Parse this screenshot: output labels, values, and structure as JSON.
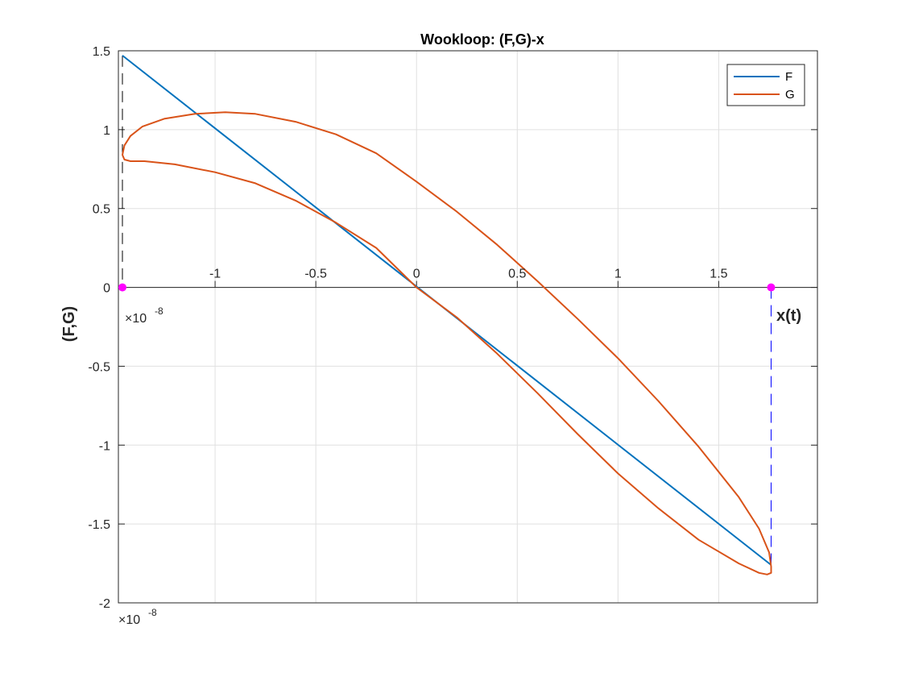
{
  "chart_data": {
    "type": "line",
    "title": "Wookloop: (F,G)-x",
    "xlabel": "x(t)",
    "ylabel": "(F,G)",
    "x_exponent_base": "×10",
    "x_exponent_power": "-8",
    "x_exponent_base_2": "×10",
    "x_exponent_power_2": "-8",
    "xlim": [
      -1.48,
      1.99
    ],
    "ylim": [
      -2,
      1.5
    ],
    "x_ticks": [
      -1,
      -0.5,
      0,
      0.5,
      1,
      1.5
    ],
    "x_tick_labels": [
      "-1",
      "-0.5",
      "0",
      "0.5",
      "1",
      "1.5"
    ],
    "y_ticks": [
      -2,
      -1.5,
      -1,
      -0.5,
      0,
      0.5,
      1,
      1.5
    ],
    "y_tick_labels": [
      "-2",
      "-1.5",
      "-1",
      "-0.5",
      "0",
      "0.5",
      "1",
      "1.5"
    ],
    "grid": true,
    "legend_placement": "top-right",
    "series": [
      {
        "name": "F",
        "color": "#0072BD",
        "x": [
          -1.46,
          1.76
        ],
        "y": [
          1.47,
          -1.76
        ]
      },
      {
        "name": "G",
        "color": "#D95319",
        "x": [
          -1.46,
          -1.45,
          -1.42,
          -1.36,
          -1.25,
          -1.1,
          -0.95,
          -0.8,
          -0.6,
          -0.4,
          -0.2,
          0.0,
          0.2,
          0.4,
          0.6,
          0.8,
          1.0,
          1.2,
          1.4,
          1.6,
          1.7,
          1.75,
          1.76,
          1.76,
          1.74,
          1.7,
          1.6,
          1.4,
          1.2,
          1.0,
          0.8,
          0.6,
          0.4,
          0.2,
          0.0,
          -0.2,
          -0.4,
          -0.6,
          -0.8,
          -1.0,
          -1.2,
          -1.35,
          -1.42,
          -1.45,
          -1.46
        ],
        "y": [
          0.84,
          0.9,
          0.96,
          1.02,
          1.07,
          1.1,
          1.11,
          1.1,
          1.05,
          0.97,
          0.85,
          0.67,
          0.48,
          0.27,
          0.04,
          -0.2,
          -0.45,
          -0.72,
          -1.01,
          -1.33,
          -1.53,
          -1.68,
          -1.77,
          -1.81,
          -1.82,
          -1.81,
          -1.75,
          -1.6,
          -1.4,
          -1.18,
          -0.93,
          -0.67,
          -0.42,
          -0.19,
          0.0,
          0.25,
          0.41,
          0.55,
          0.66,
          0.73,
          0.78,
          0.8,
          0.8,
          0.81,
          0.84
        ]
      }
    ],
    "markers": [
      {
        "x": -1.46,
        "y": 0,
        "color": "#FF00FF"
      },
      {
        "x": 1.76,
        "y": 0,
        "color": "#FF00FF"
      }
    ],
    "guide_lines": [
      {
        "x": -1.46,
        "y_from": 1.47,
        "y_to": 0,
        "color": "#000000"
      },
      {
        "x": 1.76,
        "y_from": 0,
        "y_to": -1.76,
        "color": "#0000FF"
      }
    ]
  }
}
